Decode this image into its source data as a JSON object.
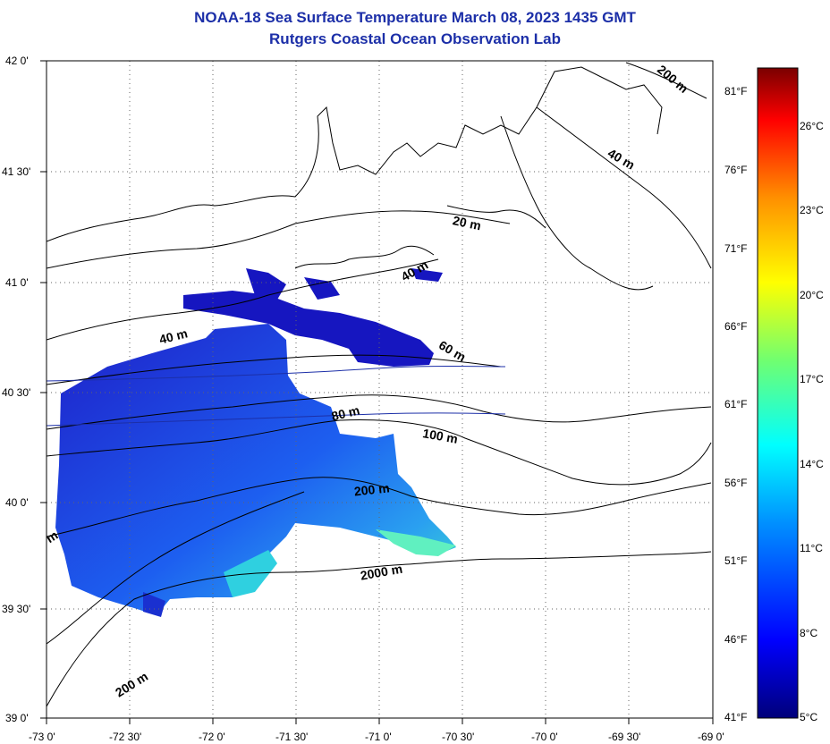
{
  "title": "NOAA-18 Sea Surface Temperature March 08, 2023 1435 GMT",
  "subtitle": "Rutgers Coastal Ocean Observation Lab",
  "lat_labels": [
    "42 0'",
    "41 30'",
    "41 0'",
    "40 30'",
    "40 0'",
    "39 30'",
    "39 0'"
  ],
  "lon_labels": [
    "-73 0'",
    "-72 30'",
    "-72 0'",
    "-71 30'",
    "-71 0'",
    "-70 30'",
    "-70 0'",
    "-69 30'",
    "-69 0'"
  ],
  "fahrenheit_labels": [
    "81°F",
    "76°F",
    "71°F",
    "66°F",
    "61°F",
    "56°F",
    "51°F",
    "46°F",
    "41°F"
  ],
  "celsius_labels": [
    "26°C",
    "23°C",
    "20°C",
    "17°C",
    "14°C",
    "11°C",
    "8°C",
    "5°C"
  ],
  "contour_labels": [
    "200 m",
    "40 m",
    "20 m",
    "40 m",
    "40 m",
    "60 m",
    "80 m",
    "100 m",
    "200 m",
    "2000 m",
    "200 m",
    "m"
  ],
  "colors": {
    "title": "#1c2fa8",
    "sst_cold": "#1f1fd0",
    "sst_warm": "#3fe0c8"
  },
  "colorbar_range_c": [
    5,
    28
  ]
}
